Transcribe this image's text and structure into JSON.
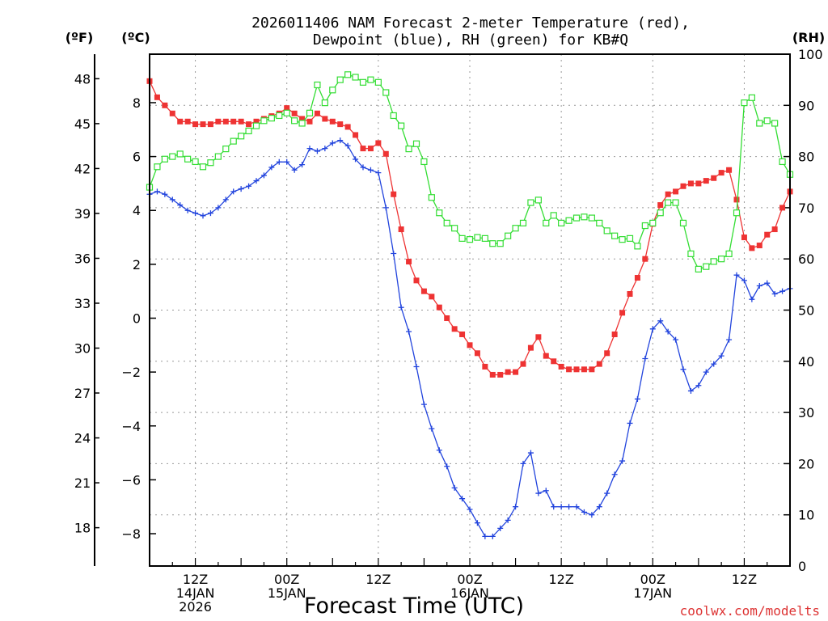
{
  "chart_data": {
    "type": "line",
    "title": "2026011406 NAM Forecast 2-meter Temperature (red),",
    "subtitle": "Dewpoint (blue), RH (green) for KB#Q",
    "xlabel": "Forecast Time (UTC)",
    "left_axis_f_label": "(ºF)",
    "left_axis_c_label": "(ºC)",
    "right_axis_label": "(RH)",
    "watermark": "coolwx.com/modelts",
    "x_range_hours": [
      0,
      84
    ],
    "x_ticks": [
      {
        "hour": 6,
        "lines": [
          "12Z",
          "14JAN",
          "2026"
        ]
      },
      {
        "hour": 18,
        "lines": [
          "00Z",
          "15JAN"
        ]
      },
      {
        "hour": 30,
        "lines": [
          "12Z"
        ]
      },
      {
        "hour": 42,
        "lines": [
          "00Z",
          "16JAN"
        ]
      },
      {
        "hour": 54,
        "lines": [
          "12Z"
        ]
      },
      {
        "hour": 66,
        "lines": [
          "00Z",
          "17JAN"
        ]
      },
      {
        "hour": 78,
        "lines": [
          "12Z"
        ]
      }
    ],
    "y_celsius_range": [
      -9.2,
      9.8
    ],
    "y_celsius_ticks": [
      -8,
      -6,
      -4,
      -2,
      0,
      2,
      4,
      6,
      8
    ],
    "y_fahrenheit_ticks": [
      18,
      21,
      24,
      27,
      30,
      33,
      36,
      39,
      42,
      45,
      48
    ],
    "y_rh_range": [
      0,
      100
    ],
    "y_rh_ticks": [
      0,
      10,
      20,
      30,
      40,
      50,
      60,
      70,
      80,
      90,
      100
    ],
    "grid": true,
    "series": [
      {
        "name": "Temperature",
        "color": "#ee3333",
        "marker": "filled-square",
        "axis": "celsius",
        "points": [
          [
            0,
            8.8
          ],
          [
            1,
            8.2
          ],
          [
            2,
            7.9
          ],
          [
            3,
            7.6
          ],
          [
            4,
            7.3
          ],
          [
            5,
            7.3
          ],
          [
            6,
            7.2
          ],
          [
            7,
            7.2
          ],
          [
            8,
            7.2
          ],
          [
            9,
            7.3
          ],
          [
            10,
            7.3
          ],
          [
            11,
            7.3
          ],
          [
            12,
            7.3
          ],
          [
            13,
            7.2
          ],
          [
            14,
            7.3
          ],
          [
            15,
            7.4
          ],
          [
            16,
            7.5
          ],
          [
            17,
            7.6
          ],
          [
            18,
            7.8
          ],
          [
            19,
            7.6
          ],
          [
            20,
            7.4
          ],
          [
            21,
            7.3
          ],
          [
            22,
            7.6
          ],
          [
            23,
            7.4
          ],
          [
            24,
            7.3
          ],
          [
            25,
            7.2
          ],
          [
            26,
            7.1
          ],
          [
            27,
            6.8
          ],
          [
            28,
            6.3
          ],
          [
            29,
            6.3
          ],
          [
            30,
            6.5
          ],
          [
            31,
            6.1
          ],
          [
            32,
            4.6
          ],
          [
            33,
            3.3
          ],
          [
            34,
            2.1
          ],
          [
            35,
            1.4
          ],
          [
            36,
            1.0
          ],
          [
            37,
            0.8
          ],
          [
            38,
            0.4
          ],
          [
            39,
            0.0
          ],
          [
            40,
            -0.4
          ],
          [
            41,
            -0.6
          ],
          [
            42,
            -1.0
          ],
          [
            43,
            -1.3
          ],
          [
            44,
            -1.8
          ],
          [
            45,
            -2.1
          ],
          [
            46,
            -2.1
          ],
          [
            47,
            -2.0
          ],
          [
            48,
            -2.0
          ],
          [
            49,
            -1.7
          ],
          [
            50,
            -1.1
          ],
          [
            51,
            -0.7
          ],
          [
            52,
            -1.4
          ],
          [
            53,
            -1.6
          ],
          [
            54,
            -1.8
          ],
          [
            55,
            -1.9
          ],
          [
            56,
            -1.9
          ],
          [
            57,
            -1.9
          ],
          [
            58,
            -1.9
          ],
          [
            59,
            -1.7
          ],
          [
            60,
            -1.3
          ],
          [
            61,
            -0.6
          ],
          [
            62,
            0.2
          ],
          [
            63,
            0.9
          ],
          [
            64,
            1.5
          ],
          [
            65,
            2.2
          ],
          [
            66,
            3.5
          ],
          [
            67,
            4.2
          ],
          [
            68,
            4.6
          ],
          [
            69,
            4.7
          ],
          [
            70,
            4.9
          ],
          [
            71,
            5.0
          ],
          [
            72,
            5.0
          ],
          [
            73,
            5.1
          ],
          [
            74,
            5.2
          ],
          [
            75,
            5.4
          ],
          [
            76,
            5.5
          ],
          [
            77,
            4.4
          ],
          [
            78,
            3.0
          ],
          [
            79,
            2.6
          ],
          [
            80,
            2.7
          ],
          [
            81,
            3.1
          ],
          [
            82,
            3.3
          ],
          [
            83,
            4.1
          ],
          [
            84,
            4.7
          ]
        ]
      },
      {
        "name": "Dewpoint",
        "color": "#2244dd",
        "marker": "plus",
        "axis": "celsius",
        "points": [
          [
            0,
            4.6
          ],
          [
            1,
            4.7
          ],
          [
            2,
            4.6
          ],
          [
            3,
            4.4
          ],
          [
            4,
            4.2
          ],
          [
            5,
            4.0
          ],
          [
            6,
            3.9
          ],
          [
            7,
            3.8
          ],
          [
            8,
            3.9
          ],
          [
            9,
            4.1
          ],
          [
            10,
            4.4
          ],
          [
            11,
            4.7
          ],
          [
            12,
            4.8
          ],
          [
            13,
            4.9
          ],
          [
            14,
            5.1
          ],
          [
            15,
            5.3
          ],
          [
            16,
            5.6
          ],
          [
            17,
            5.8
          ],
          [
            18,
            5.8
          ],
          [
            19,
            5.5
          ],
          [
            20,
            5.7
          ],
          [
            21,
            6.3
          ],
          [
            22,
            6.2
          ],
          [
            23,
            6.3
          ],
          [
            24,
            6.5
          ],
          [
            25,
            6.6
          ],
          [
            26,
            6.4
          ],
          [
            27,
            5.9
          ],
          [
            28,
            5.6
          ],
          [
            29,
            5.5
          ],
          [
            30,
            5.4
          ],
          [
            31,
            4.1
          ],
          [
            32,
            2.4
          ],
          [
            33,
            0.4
          ],
          [
            34,
            -0.5
          ],
          [
            35,
            -1.8
          ],
          [
            36,
            -3.2
          ],
          [
            37,
            -4.1
          ],
          [
            38,
            -4.9
          ],
          [
            39,
            -5.5
          ],
          [
            40,
            -6.3
          ],
          [
            41,
            -6.7
          ],
          [
            42,
            -7.1
          ],
          [
            43,
            -7.6
          ],
          [
            44,
            -8.1
          ],
          [
            45,
            -8.1
          ],
          [
            46,
            -7.8
          ],
          [
            47,
            -7.5
          ],
          [
            48,
            -7.0
          ],
          [
            49,
            -5.4
          ],
          [
            50,
            -5.0
          ],
          [
            51,
            -6.5
          ],
          [
            52,
            -6.4
          ],
          [
            53,
            -7.0
          ],
          [
            54,
            -7.0
          ],
          [
            55,
            -7.0
          ],
          [
            56,
            -7.0
          ],
          [
            57,
            -7.2
          ],
          [
            58,
            -7.3
          ],
          [
            59,
            -7.0
          ],
          [
            60,
            -6.5
          ],
          [
            61,
            -5.8
          ],
          [
            62,
            -5.3
          ],
          [
            63,
            -3.9
          ],
          [
            64,
            -3.0
          ],
          [
            65,
            -1.5
          ],
          [
            66,
            -0.4
          ],
          [
            67,
            -0.1
          ],
          [
            68,
            -0.5
          ],
          [
            69,
            -0.8
          ],
          [
            70,
            -1.9
          ],
          [
            71,
            -2.7
          ],
          [
            72,
            -2.5
          ],
          [
            73,
            -2.0
          ],
          [
            74,
            -1.7
          ],
          [
            75,
            -1.4
          ],
          [
            76,
            -0.8
          ],
          [
            77,
            1.6
          ],
          [
            78,
            1.4
          ],
          [
            79,
            0.7
          ],
          [
            80,
            1.2
          ],
          [
            81,
            1.3
          ],
          [
            82,
            0.9
          ],
          [
            83,
            1.0
          ],
          [
            84,
            1.1
          ]
        ]
      },
      {
        "name": "RH",
        "color": "#33dd33",
        "marker": "open-square",
        "axis": "rh",
        "points": [
          [
            0,
            74
          ],
          [
            1,
            78
          ],
          [
            2,
            79.5
          ],
          [
            3,
            80
          ],
          [
            4,
            80.5
          ],
          [
            5,
            79.5
          ],
          [
            6,
            79
          ],
          [
            7,
            78
          ],
          [
            8,
            78.8
          ],
          [
            9,
            80
          ],
          [
            10,
            81.5
          ],
          [
            11,
            83
          ],
          [
            12,
            84
          ],
          [
            13,
            85
          ],
          [
            14,
            86
          ],
          [
            15,
            87
          ],
          [
            16,
            87.5
          ],
          [
            17,
            88
          ],
          [
            18,
            88.5
          ],
          [
            19,
            87
          ],
          [
            20,
            86.5
          ],
          [
            21,
            88.5
          ],
          [
            22,
            94
          ],
          [
            23,
            90.5
          ],
          [
            24,
            93
          ],
          [
            25,
            95
          ],
          [
            26,
            96
          ],
          [
            27,
            95.5
          ],
          [
            28,
            94.5
          ],
          [
            29,
            95
          ],
          [
            30,
            94.5
          ],
          [
            31,
            92.5
          ],
          [
            32,
            88
          ],
          [
            33,
            86
          ],
          [
            34,
            81.5
          ],
          [
            35,
            82.5
          ],
          [
            36,
            79
          ],
          [
            37,
            72
          ],
          [
            38,
            69
          ],
          [
            39,
            67
          ],
          [
            40,
            66
          ],
          [
            41,
            64
          ],
          [
            42,
            63.8
          ],
          [
            43,
            64.2
          ],
          [
            44,
            64
          ],
          [
            45,
            63
          ],
          [
            46,
            63
          ],
          [
            47,
            64.5
          ],
          [
            48,
            66
          ],
          [
            49,
            67
          ],
          [
            50,
            71
          ],
          [
            51,
            71.5
          ],
          [
            52,
            67
          ],
          [
            53,
            68.5
          ],
          [
            54,
            67
          ],
          [
            55,
            67.5
          ],
          [
            56,
            68
          ],
          [
            57,
            68.2
          ],
          [
            58,
            68
          ],
          [
            59,
            67
          ],
          [
            60,
            65.5
          ],
          [
            61,
            64.5
          ],
          [
            62,
            63.8
          ],
          [
            63,
            64
          ],
          [
            64,
            62.5
          ],
          [
            65,
            66.5
          ],
          [
            66,
            67
          ],
          [
            67,
            69
          ],
          [
            68,
            71
          ],
          [
            69,
            71
          ],
          [
            70,
            67
          ],
          [
            71,
            61
          ],
          [
            72,
            58
          ],
          [
            73,
            58.5
          ],
          [
            74,
            59.5
          ],
          [
            75,
            60
          ],
          [
            76,
            61
          ],
          [
            77,
            69
          ],
          [
            78,
            90.5
          ],
          [
            79,
            91.5
          ],
          [
            80,
            86.5
          ],
          [
            81,
            87
          ],
          [
            82,
            86.5
          ],
          [
            83,
            79
          ],
          [
            84,
            76.5
          ]
        ]
      }
    ]
  }
}
